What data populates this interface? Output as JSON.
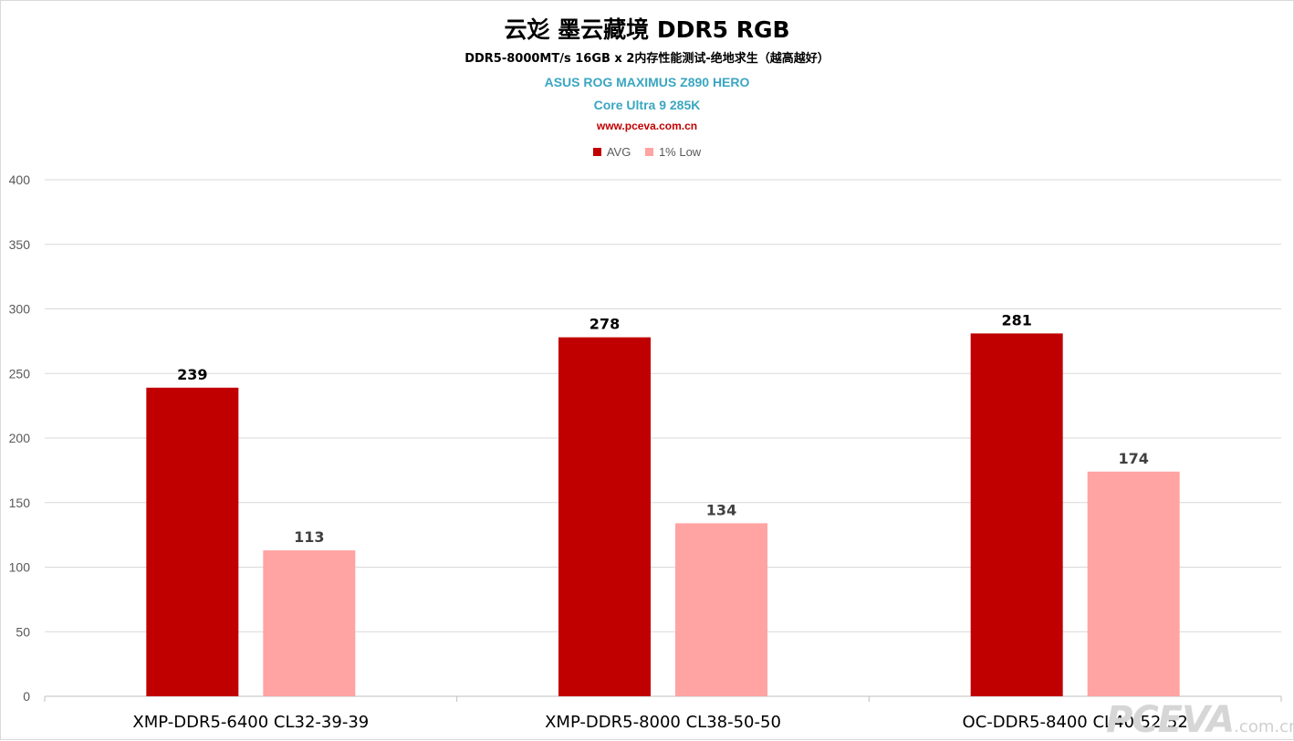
{
  "chart_data": {
    "type": "bar",
    "title": "云彣 墨云藏境 DDR5 RGB",
    "subtitle": "DDR5-8000MT/s 16GB x 2内存性能测试-绝地求生（越高越好）",
    "board": "ASUS ROG MAXIMUS Z890 HERO",
    "cpu": "Core Ultra 9 285K",
    "site": "www.pceva.com.cn",
    "categories": [
      "XMP-DDR5-6400 CL32-39-39",
      "XMP-DDR5-8000 CL38-50-50",
      "OC-DDR5-8400 CL40-52-52"
    ],
    "series": [
      {
        "name": "AVG",
        "values": [
          239,
          278,
          281
        ],
        "color": "#c00000"
      },
      {
        "name": "1% Low",
        "values": [
          113,
          134,
          174
        ],
        "color": "#ffa3a3"
      }
    ],
    "ylim": [
      0,
      400
    ],
    "yticks": [
      0,
      50,
      100,
      150,
      200,
      250,
      300,
      350,
      400
    ],
    "grid": true,
    "legend": "top"
  },
  "watermark": {
    "brand": "PCEVA",
    "domain": ".com.cn"
  }
}
